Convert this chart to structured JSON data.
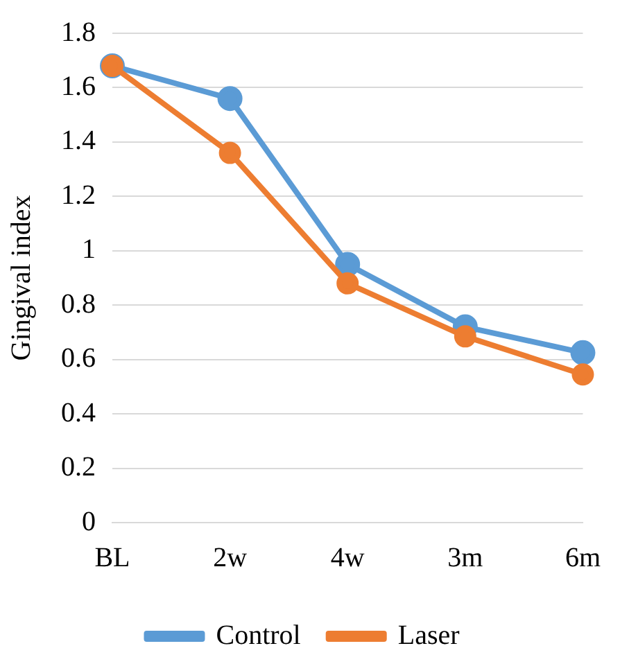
{
  "chart_data": {
    "type": "line",
    "ylabel": "Gingival index",
    "categories": [
      "BL",
      "2w",
      "4w",
      "3m",
      "6m"
    ],
    "series": [
      {
        "name": "Control",
        "color": "#5b9bd5",
        "values": [
          1.68,
          1.56,
          0.95,
          0.72,
          0.625
        ]
      },
      {
        "name": "Laser",
        "color": "#ed7d31",
        "values": [
          1.68,
          1.36,
          0.88,
          0.685,
          0.545
        ]
      }
    ],
    "ylim": [
      0,
      1.8
    ],
    "yticks": [
      0,
      0.2,
      0.4,
      0.6,
      0.8,
      1,
      1.2,
      1.4,
      1.6,
      1.8
    ],
    "grid": "y",
    "legend": "bottom",
    "marker": "circle",
    "line_style": "solid"
  }
}
